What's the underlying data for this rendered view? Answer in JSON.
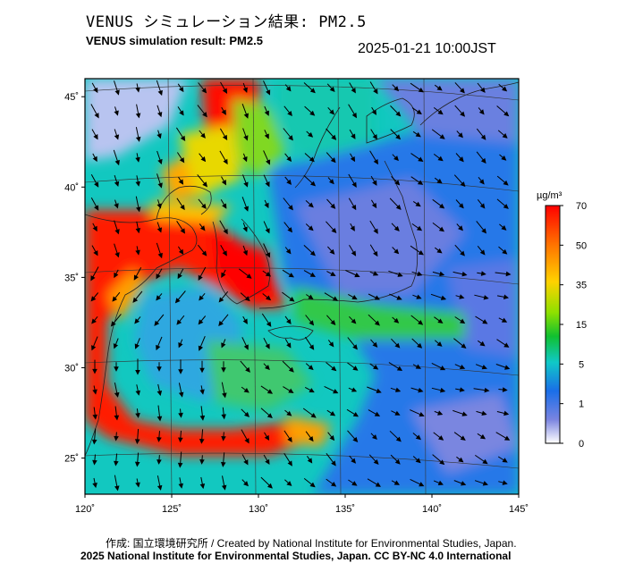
{
  "title_jp": "VENUS シミュレーション結果: PM2.5",
  "title_en": "VENUS simulation result: PM2.5",
  "timestamp": "2025-01-21 10:00JST",
  "credit": "作成: 国立環境研究所 / Created by National Institute for Environmental Studies, Japan.",
  "copyright": "2025 National Institute for Environmental Studies, Japan. CC BY-NC 4.0 International",
  "map": {
    "lon_ticks": [
      {
        "value": 120,
        "label": "120˚"
      },
      {
        "value": 125,
        "label": "125˚"
      },
      {
        "value": 130,
        "label": "130˚"
      },
      {
        "value": 135,
        "label": "135˚"
      },
      {
        "value": 140,
        "label": "140˚"
      },
      {
        "value": 145,
        "label": "145˚"
      }
    ],
    "lat_ticks": [
      {
        "value": 45,
        "label": "45˚"
      },
      {
        "value": 40,
        "label": "40˚"
      },
      {
        "value": 35,
        "label": "35˚"
      },
      {
        "value": 30,
        "label": "30˚"
      },
      {
        "value": 25,
        "label": "25˚"
      }
    ],
    "lon_range": [
      120,
      145
    ],
    "lat_range": [
      23,
      46
    ]
  },
  "colorbar": {
    "unit": "µg/m³",
    "ticks": [
      "70",
      "50",
      "35",
      "15",
      "5",
      "1",
      "0"
    ],
    "colors": [
      "#ff0000",
      "#ff6a00",
      "#ffd200",
      "#a0e000",
      "#10c030",
      "#10c8c8",
      "#1a6ee8",
      "#6a78e0",
      "#ffffff"
    ]
  }
}
